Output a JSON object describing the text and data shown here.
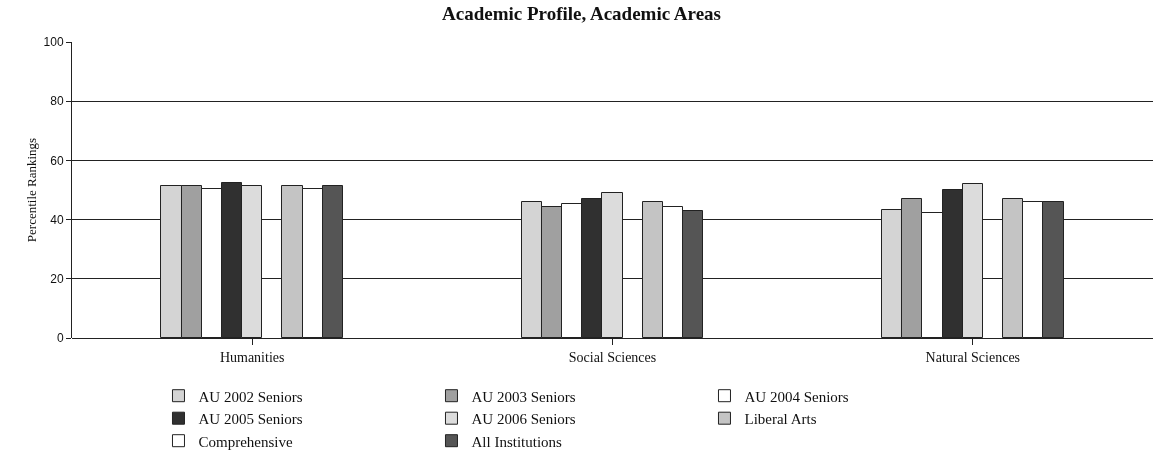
{
  "chart_data": {
    "type": "bar",
    "title": "Academic Profile, Academic Areas",
    "ylabel": "Percentile Rankings",
    "categories": [
      "Humanities",
      "Social Sciences",
      "Natural Sciences"
    ],
    "series": [
      {
        "name": "AU 2002 Seniors",
        "color": "#d4d4d4",
        "values": [
          51.5,
          46.1,
          43.1
        ]
      },
      {
        "name": "AU 2003 Seniors",
        "color": "#a0a0a0",
        "values": [
          51.5,
          44.2,
          47.1
        ]
      },
      {
        "name": "AU 2004 Seniors",
        "color": "#ffffff",
        "values": [
          50.5,
          45.2,
          42.2
        ]
      },
      {
        "name": "AU 2005 Seniors",
        "color": "#303030",
        "values": [
          52.4,
          47.1,
          50.1
        ]
      },
      {
        "name": "AU 2006 Seniors",
        "color": "#dcdcdc",
        "values": [
          51.4,
          49.1,
          52.1
        ]
      },
      {
        "name": "Liberal Arts",
        "color": "#c4c4c4",
        "values": [
          51.2,
          45.9,
          47.0
        ]
      },
      {
        "name": "Comprehensive",
        "color": "#ffffff",
        "values": [
          50.3,
          44.1,
          46.0
        ]
      },
      {
        "name": "All Institutions",
        "color": "#555555",
        "values": [
          51.4,
          42.9,
          45.9
        ]
      }
    ],
    "ylim": [
      0,
      100
    ],
    "yticks": [
      0,
      20,
      40,
      60,
      80,
      100
    ],
    "grid": "y",
    "legend": "bottom"
  }
}
